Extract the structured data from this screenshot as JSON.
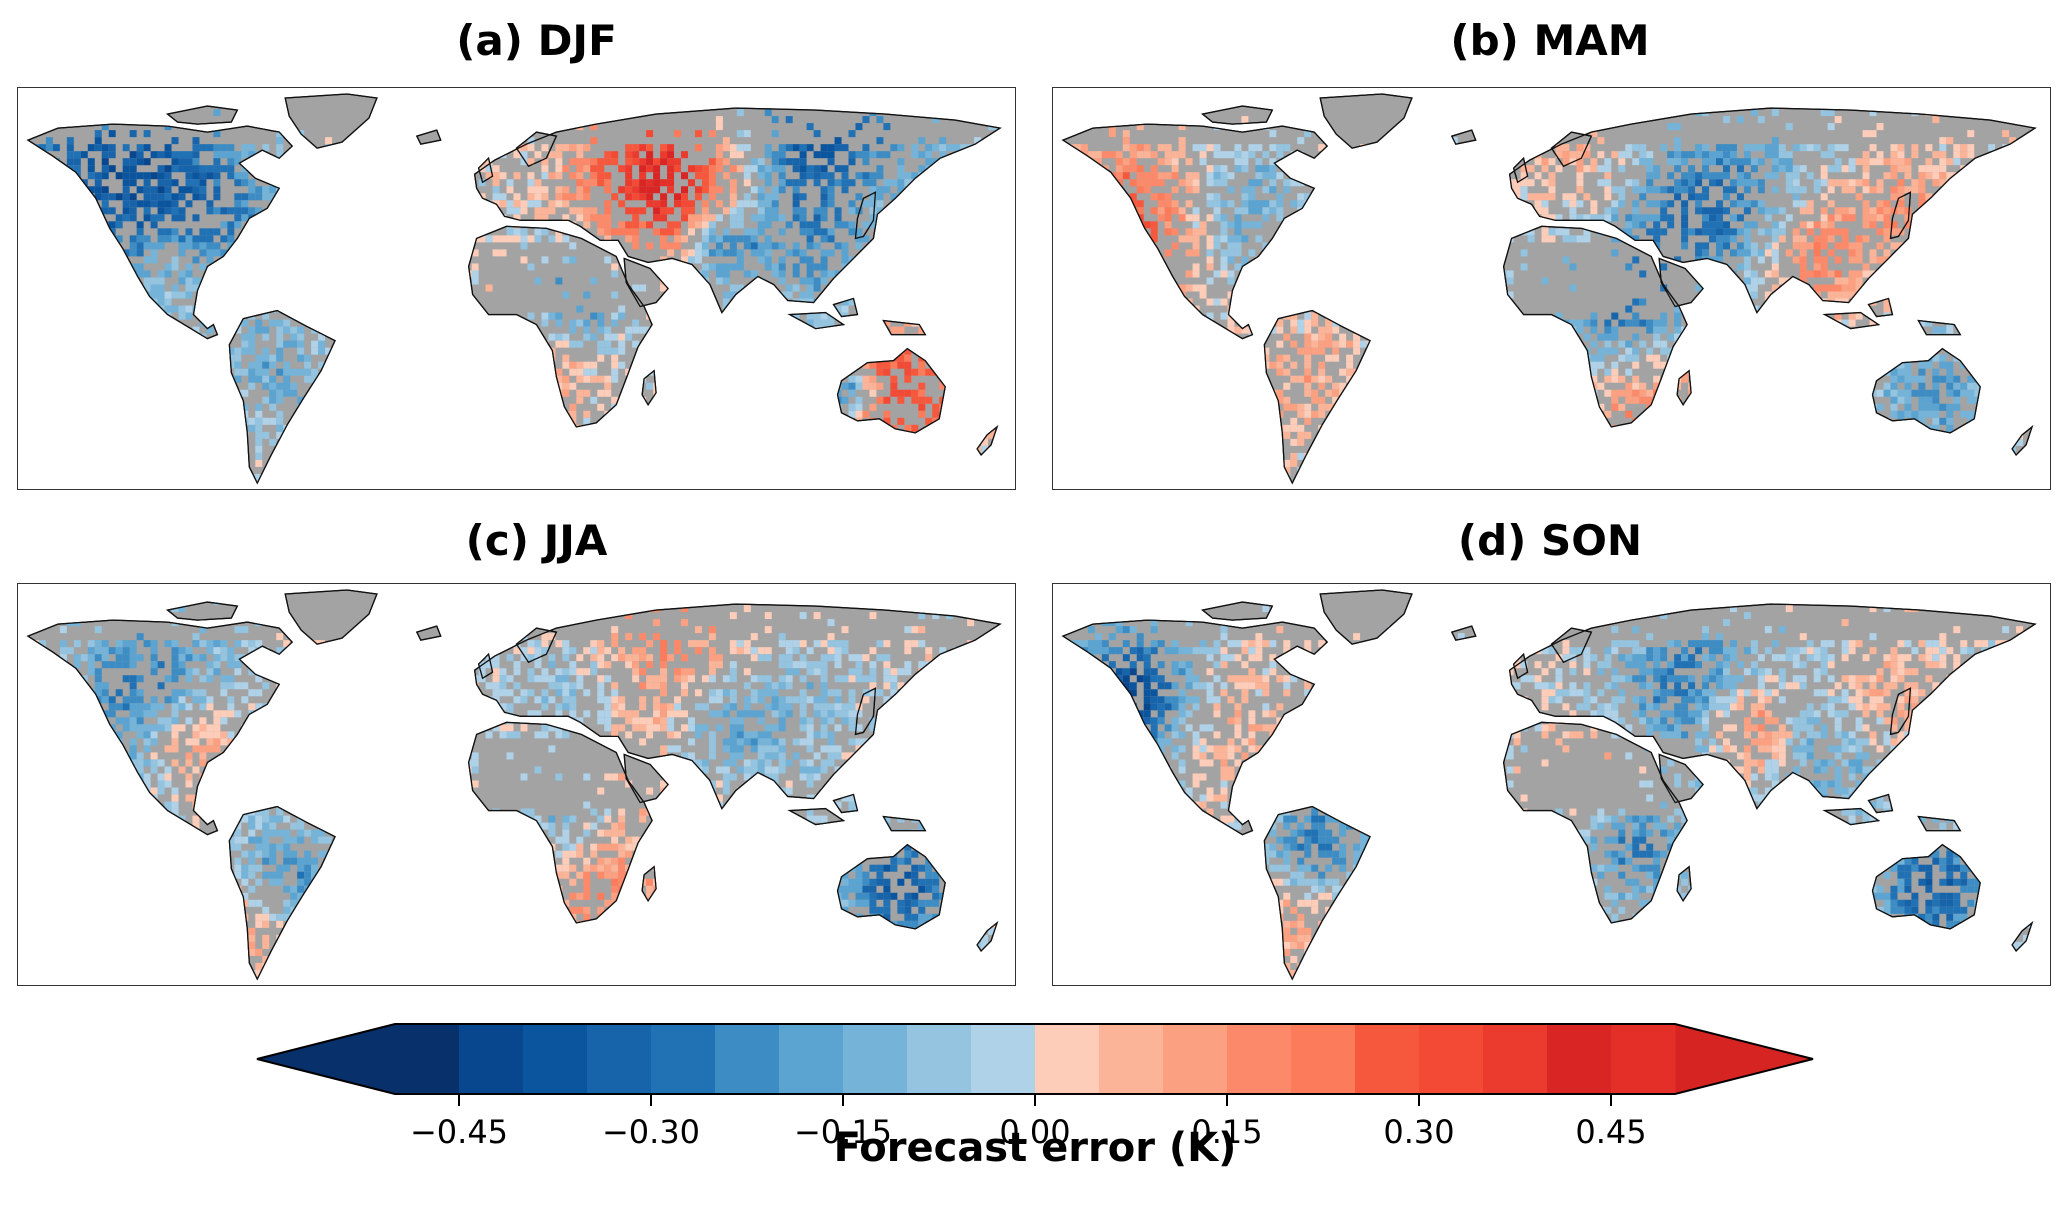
{
  "panels": [
    {
      "id": "a",
      "title": "(a) DJF",
      "pattern": "djf"
    },
    {
      "id": "b",
      "title": "(b) MAM",
      "pattern": "mam"
    },
    {
      "id": "c",
      "title": "(c) JJA",
      "pattern": "jja"
    },
    {
      "id": "d",
      "title": "(d) SON",
      "pattern": "son"
    }
  ],
  "colorbar": {
    "label": "Forecast error (K)",
    "min": -0.5,
    "max": 0.5,
    "step": 0.05,
    "extend": "both",
    "ticks": [
      -0.45,
      -0.3,
      -0.15,
      0.0,
      0.15,
      0.3,
      0.45
    ],
    "tick_labels": [
      "−0.45",
      "−0.30",
      "−0.15",
      "0.00",
      "0.15",
      "0.30",
      "0.45"
    ],
    "colors": [
      "#08306b",
      "#08468d",
      "#0b559f",
      "#1764ab",
      "#2171b5",
      "#3d8dc4",
      "#5ba3d0",
      "#75b4d8",
      "#94c4df",
      "#b0d2e8",
      "#fdcdb9",
      "#fcb499",
      "#fca082",
      "#fc8a6a",
      "#fb7b5b",
      "#f6583e",
      "#f24a35",
      "#ea3b2e",
      "#d92523",
      "#e32f27"
    ],
    "neg_extend_color": "#08306b",
    "pos_extend_color": "#d62422"
  },
  "map_style": {
    "land_color": "#a3a3a3",
    "ocean_color": "#ffffff",
    "coast_color": "#111111"
  }
}
